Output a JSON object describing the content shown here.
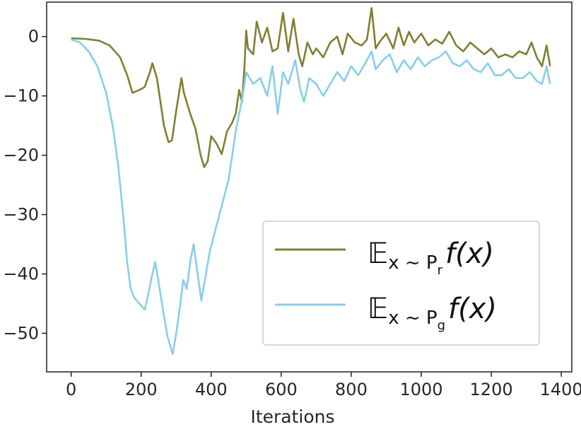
{
  "chart_data": {
    "type": "line",
    "title": "",
    "xlabel": "Iterations",
    "ylabel": "",
    "xlim": [
      -70,
      1430
    ],
    "ylim": [
      -56.5,
      5.8
    ],
    "xticks": [
      0,
      200,
      400,
      600,
      800,
      1000,
      1200,
      1400
    ],
    "yticks": [
      0,
      -10,
      -20,
      -30,
      -40,
      -50
    ],
    "ytick_labels": [
      "0",
      "−10",
      "−20",
      "−30",
      "−40",
      "−50"
    ],
    "grid": false,
    "legend_position": "lower-right",
    "series": [
      {
        "name": "E_{x~P_r} f(x)",
        "legend_main": "𝔼",
        "legend_sub": "x ~ P",
        "legend_subsub": "r",
        "legend_tail": "f(x)",
        "color": "#7f7f33",
        "points": [
          [
            0,
            -0.3
          ],
          [
            40,
            -0.4
          ],
          [
            80,
            -0.7
          ],
          [
            110,
            -1.5
          ],
          [
            140,
            -3.5
          ],
          [
            160,
            -6.5
          ],
          [
            175,
            -9.5
          ],
          [
            195,
            -9.0
          ],
          [
            210,
            -8.5
          ],
          [
            225,
            -6.0
          ],
          [
            232,
            -4.5
          ],
          [
            245,
            -7.0
          ],
          [
            255,
            -11.0
          ],
          [
            265,
            -15.0
          ],
          [
            278,
            -17.8
          ],
          [
            288,
            -17.5
          ],
          [
            300,
            -12.5
          ],
          [
            315,
            -7.0
          ],
          [
            322,
            -9.5
          ],
          [
            340,
            -13.0
          ],
          [
            355,
            -15.5
          ],
          [
            370,
            -20.0
          ],
          [
            380,
            -22.0
          ],
          [
            390,
            -21.0
          ],
          [
            400,
            -16.8
          ],
          [
            415,
            -18.0
          ],
          [
            430,
            -19.8
          ],
          [
            445,
            -16.0
          ],
          [
            460,
            -14.5
          ],
          [
            470,
            -13.0
          ],
          [
            480,
            -9.0
          ],
          [
            488,
            -11.0
          ],
          [
            495,
            -5.0
          ],
          [
            500,
            1.0
          ],
          [
            505,
            -2.0
          ],
          [
            520,
            -3.0
          ],
          [
            530,
            2.5
          ],
          [
            545,
            -1.0
          ],
          [
            560,
            1.5
          ],
          [
            575,
            -2.5
          ],
          [
            590,
            -2.0
          ],
          [
            605,
            4.0
          ],
          [
            620,
            -2.5
          ],
          [
            635,
            3.0
          ],
          [
            650,
            -3.0
          ],
          [
            660,
            -5.0
          ],
          [
            675,
            -1.0
          ],
          [
            690,
            -3.0
          ],
          [
            700,
            -2.0
          ],
          [
            720,
            -3.5
          ],
          [
            740,
            -1.0
          ],
          [
            760,
            0.0
          ],
          [
            775,
            -3.0
          ],
          [
            790,
            0.5
          ],
          [
            810,
            -1.0
          ],
          [
            830,
            -1.5
          ],
          [
            845,
            -0.5
          ],
          [
            858,
            4.8
          ],
          [
            870,
            -2.0
          ],
          [
            880,
            -1.0
          ],
          [
            900,
            0.5
          ],
          [
            920,
            -2.0
          ],
          [
            935,
            1.5
          ],
          [
            950,
            -1.5
          ],
          [
            965,
            0.8
          ],
          [
            980,
            -1.0
          ],
          [
            1000,
            0.5
          ],
          [
            1020,
            -1.5
          ],
          [
            1040,
            -0.5
          ],
          [
            1060,
            -1.2
          ],
          [
            1080,
            0.8
          ],
          [
            1100,
            -1.5
          ],
          [
            1120,
            -2.5
          ],
          [
            1140,
            -1.0
          ],
          [
            1160,
            -2.0
          ],
          [
            1180,
            -3.0
          ],
          [
            1200,
            -2.0
          ],
          [
            1220,
            -3.5
          ],
          [
            1240,
            -3.0
          ],
          [
            1260,
            -3.5
          ],
          [
            1280,
            -2.5
          ],
          [
            1300,
            -3.0
          ],
          [
            1315,
            -1.0
          ],
          [
            1330,
            -3.5
          ],
          [
            1345,
            -5.0
          ],
          [
            1358,
            -1.5
          ],
          [
            1368,
            -5.0
          ]
        ]
      },
      {
        "name": "E_{x~P_g} f(x)",
        "legend_main": "𝔼",
        "legend_sub": "x ~ P",
        "legend_subsub": "g",
        "legend_tail": "f(x)",
        "color": "#87ceeb",
        "points": [
          [
            0,
            -0.5
          ],
          [
            25,
            -1.0
          ],
          [
            50,
            -2.5
          ],
          [
            75,
            -5.0
          ],
          [
            100,
            -9.5
          ],
          [
            120,
            -15.5
          ],
          [
            135,
            -22.0
          ],
          [
            150,
            -31.0
          ],
          [
            160,
            -38.0
          ],
          [
            170,
            -42.5
          ],
          [
            180,
            -44.0
          ],
          [
            195,
            -45.0
          ],
          [
            210,
            -46.0
          ],
          [
            220,
            -43.5
          ],
          [
            230,
            -40.5
          ],
          [
            240,
            -38.0
          ],
          [
            250,
            -41.5
          ],
          [
            262,
            -46.0
          ],
          [
            275,
            -50.5
          ],
          [
            290,
            -53.5
          ],
          [
            300,
            -50.0
          ],
          [
            312,
            -45.0
          ],
          [
            320,
            -41.0
          ],
          [
            330,
            -42.5
          ],
          [
            340,
            -38.0
          ],
          [
            350,
            -35.0
          ],
          [
            360,
            -39.5
          ],
          [
            372,
            -44.5
          ],
          [
            385,
            -40.0
          ],
          [
            395,
            -36.5
          ],
          [
            410,
            -33.0
          ],
          [
            430,
            -28.5
          ],
          [
            450,
            -24.0
          ],
          [
            470,
            -16.0
          ],
          [
            490,
            -10.0
          ],
          [
            500,
            -6.0
          ],
          [
            520,
            -8.0
          ],
          [
            540,
            -7.0
          ],
          [
            560,
            -10.0
          ],
          [
            575,
            -5.0
          ],
          [
            590,
            -13.0
          ],
          [
            605,
            -6.0
          ],
          [
            620,
            -8.0
          ],
          [
            640,
            -4.0
          ],
          [
            655,
            -9.0
          ],
          [
            665,
            -11.0
          ],
          [
            680,
            -7.0
          ],
          [
            700,
            -8.0
          ],
          [
            720,
            -10.0
          ],
          [
            740,
            -8.0
          ],
          [
            760,
            -6.0
          ],
          [
            780,
            -7.5
          ],
          [
            800,
            -5.0
          ],
          [
            820,
            -6.5
          ],
          [
            840,
            -4.5
          ],
          [
            858,
            -2.5
          ],
          [
            870,
            -5.5
          ],
          [
            890,
            -4.0
          ],
          [
            910,
            -3.0
          ],
          [
            930,
            -6.0
          ],
          [
            950,
            -4.0
          ],
          [
            970,
            -5.5
          ],
          [
            990,
            -3.5
          ],
          [
            1010,
            -5.0
          ],
          [
            1030,
            -4.0
          ],
          [
            1050,
            -3.5
          ],
          [
            1070,
            -2.5
          ],
          [
            1090,
            -4.5
          ],
          [
            1110,
            -5.0
          ],
          [
            1130,
            -4.0
          ],
          [
            1150,
            -5.5
          ],
          [
            1170,
            -6.0
          ],
          [
            1190,
            -4.5
          ],
          [
            1210,
            -6.5
          ],
          [
            1230,
            -6.5
          ],
          [
            1250,
            -5.5
          ],
          [
            1270,
            -7.0
          ],
          [
            1290,
            -7.0
          ],
          [
            1310,
            -6.0
          ],
          [
            1330,
            -7.5
          ],
          [
            1345,
            -8.0
          ],
          [
            1358,
            -5.0
          ],
          [
            1368,
            -8.0
          ]
        ]
      }
    ]
  }
}
